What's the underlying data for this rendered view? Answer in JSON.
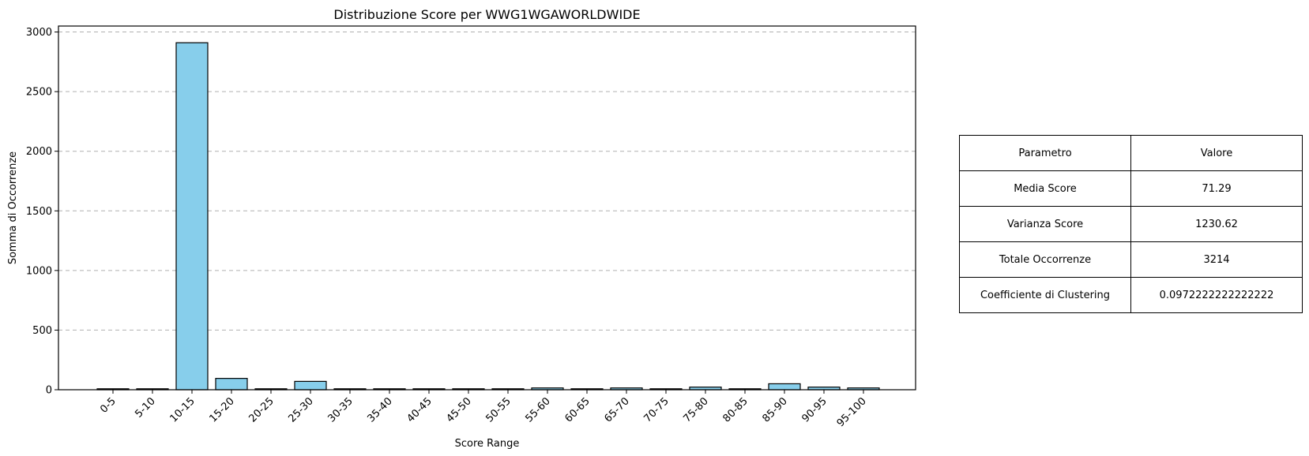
{
  "chart_data": {
    "type": "bar",
    "title": "Distribuzione Score per WWG1WGAWORLDWIDE",
    "xlabel": "Score Range",
    "ylabel": "Somma di Occorrenze",
    "ylim": [
      0,
      3050
    ],
    "yticks": [
      "0",
      "500",
      "1000",
      "1500",
      "2000",
      "2500",
      "3000"
    ],
    "grid": "y-dashed",
    "bar_color": "#87CEEB",
    "edge_color": "#000000",
    "categories": [
      "0-5",
      "5-10",
      "10-15",
      "15-20",
      "20-25",
      "25-30",
      "30-35",
      "35-40",
      "40-45",
      "45-50",
      "50-55",
      "55-60",
      "60-65",
      "65-70",
      "70-75",
      "75-80",
      "80-85",
      "85-90",
      "90-95",
      "95-100"
    ],
    "values": [
      0,
      0,
      2910,
      95,
      0,
      70,
      0,
      0,
      0,
      0,
      0,
      15,
      0,
      15,
      0,
      22,
      0,
      50,
      22,
      15
    ]
  },
  "table": {
    "header": [
      "Parametro",
      "Valore"
    ],
    "rows": [
      [
        "Media Score",
        "71.29"
      ],
      [
        "Varianza Score",
        "1230.62"
      ],
      [
        "Totale Occorrenze",
        "3214"
      ],
      [
        "Coefficiente di Clustering",
        "0.0972222222222222"
      ]
    ]
  }
}
